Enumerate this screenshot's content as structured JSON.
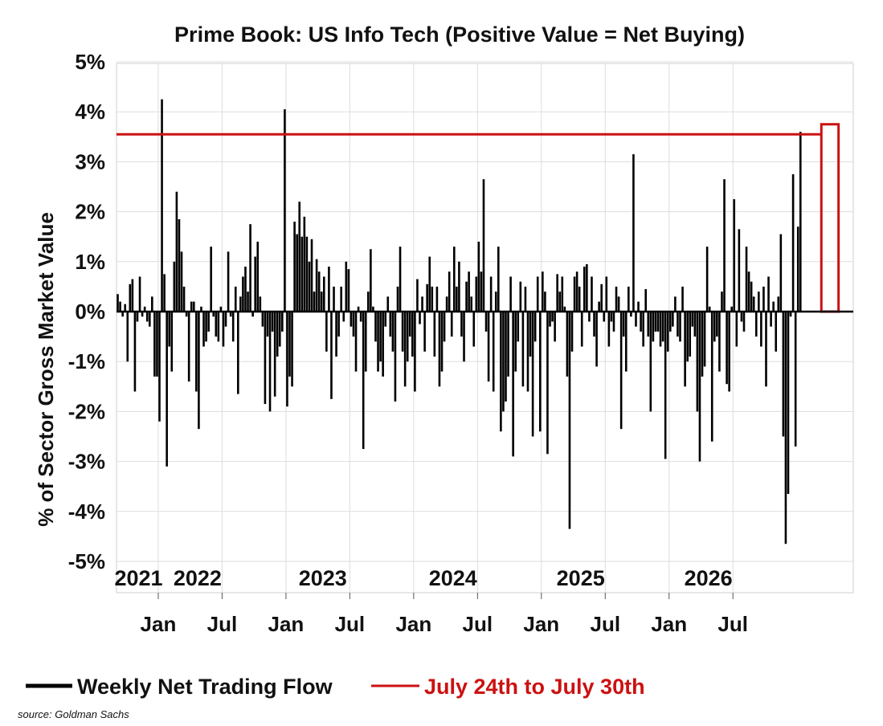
{
  "chart_data": {
    "type": "bar",
    "title": "Prime Book: US Info Tech (Positive Value = Net Buying)",
    "xlabel": "",
    "ylabel": "% of Sector Gross Market Value",
    "ylim": [
      -5,
      5
    ],
    "y_ticks": [
      5,
      4,
      3,
      2,
      1,
      0,
      -1,
      -2,
      -3,
      -4,
      -5
    ],
    "y_tick_labels": [
      "5%",
      "4%",
      "3%",
      "2%",
      "1%",
      "0%",
      "-1%",
      "-2%",
      "-3%",
      "-4%",
      "-5%"
    ],
    "x_ticks": [
      {
        "week": 17,
        "label": "Jan"
      },
      {
        "week": 43,
        "label": "Jul"
      },
      {
        "week": 69,
        "label": "Jan"
      },
      {
        "week": 95,
        "label": "Jul"
      },
      {
        "week": 121,
        "label": "Jan"
      },
      {
        "week": 147,
        "label": "Jul"
      },
      {
        "week": 173,
        "label": "Jan"
      },
      {
        "week": 199,
        "label": "Jul"
      },
      {
        "week": 225,
        "label": "Jan"
      },
      {
        "week": 251,
        "label": "Jul"
      }
    ],
    "year_labels": [
      {
        "week": 9,
        "label": "2021"
      },
      {
        "week": 33,
        "label": "2022"
      },
      {
        "week": 84,
        "label": "2023"
      },
      {
        "week": 137,
        "label": "2024"
      },
      {
        "week": 189,
        "label": "2025"
      },
      {
        "week": 241,
        "label": "2026"
      }
    ],
    "grid": true,
    "legend_position": "bottom",
    "series": [
      {
        "name": "Weekly Net Trading Flow",
        "color": "#000000",
        "week_start": 0,
        "values": [
          0.35,
          0.2,
          -0.1,
          0.15,
          -1.0,
          0.55,
          0.65,
          -1.6,
          -0.2,
          0.7,
          -0.1,
          0.1,
          -0.2,
          -0.3,
          0.3,
          -1.3,
          -1.3,
          -2.2,
          4.25,
          0.75,
          -3.1,
          -0.7,
          -1.2,
          1.0,
          2.4,
          1.85,
          1.2,
          0.5,
          -0.1,
          -1.4,
          0.2,
          0.2,
          -1.6,
          -2.35,
          0.1,
          -0.7,
          -0.6,
          -0.4,
          1.3,
          -0.1,
          -0.5,
          -0.6,
          0.1,
          -0.7,
          -0.3,
          1.2,
          -0.1,
          -0.6,
          0.5,
          -1.65,
          0.3,
          0.7,
          0.9,
          0.4,
          1.75,
          -0.1,
          1.1,
          1.4,
          0.3,
          -0.3,
          -1.85,
          -0.5,
          -2.0,
          -0.4,
          -1.7,
          -0.9,
          -0.7,
          -0.4,
          4.05,
          -1.9,
          -1.3,
          -1.5,
          1.8,
          1.55,
          2.2,
          1.5,
          1.9,
          1.5,
          1.0,
          1.45,
          0.4,
          1.05,
          0.8,
          0.4,
          0.7,
          -0.8,
          0.9,
          -1.75,
          0.5,
          -0.9,
          -0.5,
          0.5,
          -0.2,
          1.0,
          0.85,
          -0.3,
          -0.5,
          -1.2,
          0.1,
          -0.2,
          -2.75,
          -1.2,
          0.4,
          1.25,
          0.1,
          -0.6,
          -1.2,
          -1.0,
          -1.3,
          -0.3,
          0.3,
          -0.5,
          -0.8,
          -1.8,
          0.5,
          1.3,
          -0.8,
          -1.5,
          -1.0,
          -0.5,
          -0.9,
          -1.6,
          0.65,
          -0.25,
          0.3,
          -0.8,
          0.55,
          1.1,
          0.5,
          -0.9,
          0.5,
          -1.5,
          -1.2,
          -0.6,
          0.3,
          0.8,
          -0.5,
          1.3,
          0.5,
          1.0,
          -0.5,
          -1.0,
          0.6,
          0.8,
          0.3,
          -0.7,
          0.7,
          1.4,
          0.8,
          2.65,
          -0.4,
          -1.4,
          0.7,
          -1.6,
          0.4,
          1.3,
          -2.4,
          -2.0,
          -1.8,
          -1.3,
          0.7,
          -2.9,
          -1.2,
          -0.6,
          0.6,
          -1.5,
          0.5,
          -1.6,
          -0.9,
          -2.5,
          -0.6,
          0.7,
          -2.4,
          0.8,
          0.4,
          -2.85,
          -0.3,
          -0.2,
          -0.6,
          0.75,
          0.4,
          0.7,
          0.1,
          -1.3,
          -4.35,
          -0.8,
          0.7,
          0.8,
          0.5,
          -0.7,
          0.9,
          0.95,
          -0.2,
          0.7,
          -0.5,
          -1.1,
          0.2,
          0.55,
          -0.2,
          0.7,
          -0.7,
          -0.2,
          -0.4,
          0.5,
          0.3,
          -2.35,
          -0.5,
          -1.2,
          0.5,
          -0.1,
          3.15,
          -0.3,
          0.2,
          -0.4,
          -0.7,
          0.45,
          -0.5,
          -2.0,
          -0.6,
          -0.4,
          -0.4,
          -0.7,
          -0.6,
          -2.95,
          -0.8,
          -0.4,
          -0.3,
          0.3,
          -0.5,
          -0.6,
          0.5,
          -1.5,
          -1.0,
          -0.9,
          -0.3,
          -0.5,
          -2.0,
          -3.0,
          -1.3,
          -1.1,
          1.3,
          0.1,
          -2.6,
          -0.6,
          -0.5,
          -1.2,
          0.4,
          2.65,
          -1.45,
          -1.6,
          0.1,
          2.25,
          -0.7,
          1.65,
          -0.2,
          -0.4,
          1.3,
          0.8,
          0.6,
          0.3,
          -0.5,
          0.4,
          -0.7,
          0.5,
          -1.5,
          0.7,
          -0.3,
          0.2,
          -0.8,
          0.3,
          1.55,
          -2.5,
          -4.65,
          -3.65,
          -0.1,
          2.75,
          -2.7,
          1.7,
          3.6
        ]
      }
    ],
    "reference_line": {
      "name": "July 24th to July 30th",
      "color": "#cc1111",
      "value": 3.55
    },
    "highlight_box": {
      "color": "#cc1111",
      "week_start": 287,
      "week_end": 294,
      "y_from": 0,
      "y_to": 3.75
    }
  },
  "source_text": "source: Goldman Sachs"
}
